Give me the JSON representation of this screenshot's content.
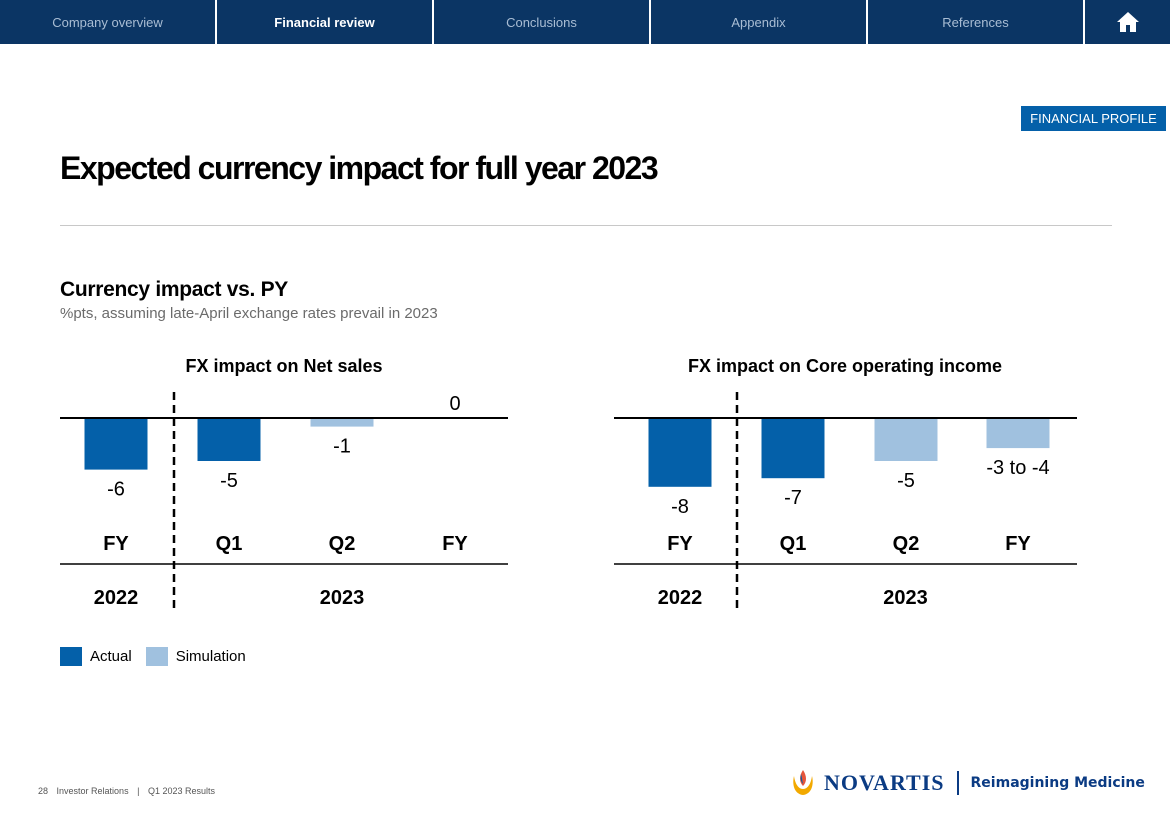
{
  "nav": {
    "tabs": [
      {
        "label": "Company overview",
        "active": false
      },
      {
        "label": "Financial review",
        "active": true
      },
      {
        "label": "Conclusions",
        "active": false
      },
      {
        "label": "Appendix",
        "active": false
      },
      {
        "label": "References",
        "active": false
      }
    ],
    "home_icon": "home-icon"
  },
  "badge": "FINANCIAL PROFILE",
  "title": "Expected currency impact for full year 2023",
  "subtitle": "Currency impact vs. PY",
  "subtitle_note": "%pts, assuming late-April exchange rates prevail in 2023",
  "colors": {
    "nav_bg": "#0b3564",
    "actual": "#0460a9",
    "simulation": "#a0c1df",
    "badge": "#0460a9"
  },
  "chart_data": [
    {
      "type": "bar",
      "title": "FX impact on Net sales",
      "categories": [
        "FY",
        "Q1",
        "Q2",
        "FY"
      ],
      "groups": [
        "2022",
        "2023"
      ],
      "values": [
        -6,
        -5,
        -1,
        0
      ],
      "labels": [
        "-6",
        "-5",
        "-1",
        "0"
      ],
      "kind": [
        "Actual",
        "Actual",
        "Simulation",
        "Simulation"
      ],
      "ylim": [
        -8,
        0
      ]
    },
    {
      "type": "bar",
      "title": "FX impact on Core operating income",
      "categories": [
        "FY",
        "Q1",
        "Q2",
        "FY"
      ],
      "groups": [
        "2022",
        "2023"
      ],
      "values": [
        -8,
        -7,
        -5,
        -3.5
      ],
      "labels": [
        "-8",
        "-7",
        "-5",
        "-3 to -4"
      ],
      "kind": [
        "Actual",
        "Actual",
        "Simulation",
        "Simulation"
      ],
      "ylim": [
        -8,
        0
      ]
    }
  ],
  "legend": [
    {
      "label": "Actual",
      "color": "#0460a9"
    },
    {
      "label": "Simulation",
      "color": "#a0c1df"
    }
  ],
  "footer": {
    "page": "28",
    "section": "Investor Relations",
    "doc": "Q1 2023 Results"
  },
  "logo": {
    "name": "NOVARTIS",
    "tagline": "Reimagining Medicine"
  }
}
